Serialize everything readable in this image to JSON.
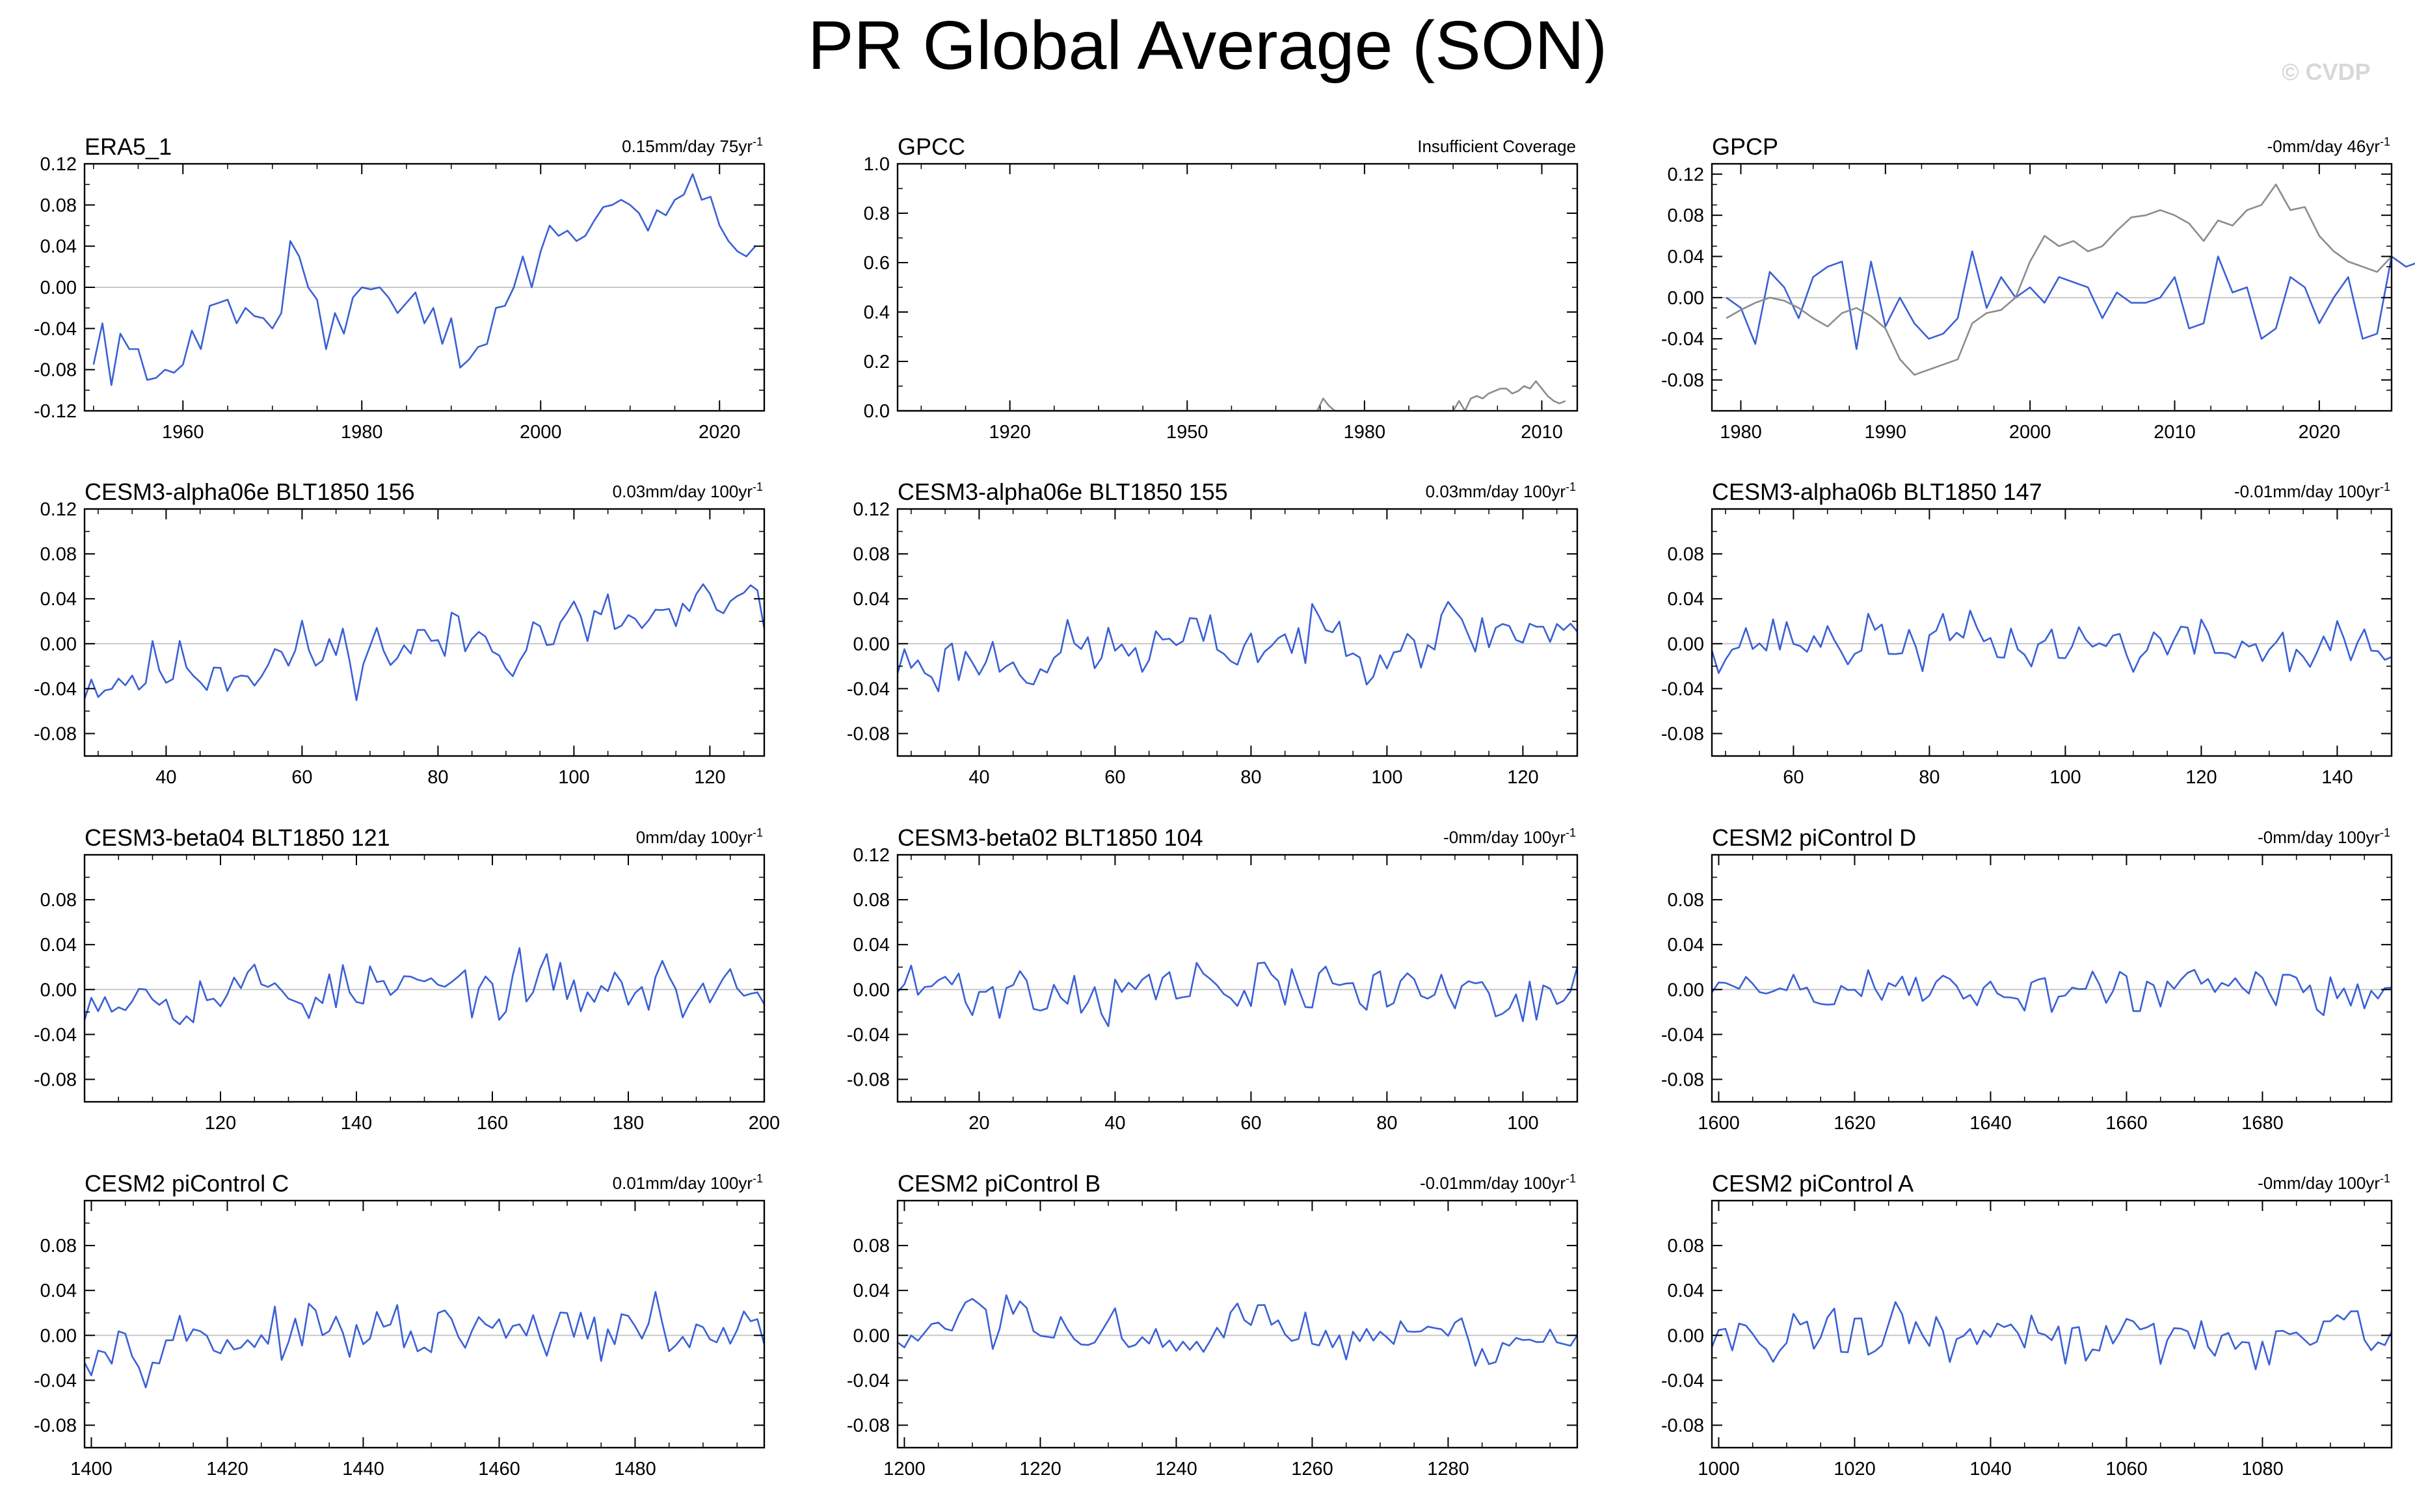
{
  "title": "PR Global Average (SON)",
  "watermark": "© CVDP",
  "colors": {
    "model_line": "#3a60d6",
    "obs_line": "#8c8c8c",
    "zero_line": "#c8c8c8",
    "frame": "#000000"
  },
  "chart_data": [
    {
      "type": "line",
      "title": "ERA5_1",
      "trend": "0.15mm/day 75yr",
      "trend_sup": "-1",
      "xlim": [
        1949,
        2025
      ],
      "ylim": [
        -0.12,
        0.12
      ],
      "yticks": [
        "0.12",
        "0.08",
        "0.04",
        "0.00",
        "-0.04",
        "-0.08",
        "-0.12"
      ],
      "xticks": [
        "1960",
        "1980",
        "2000",
        "2020"
      ],
      "series": [
        {
          "x_start": 1950,
          "values": [
            -0.075,
            -0.035,
            -0.095,
            -0.045,
            -0.06,
            -0.06,
            -0.09,
            -0.088,
            -0.08,
            -0.083,
            -0.075,
            -0.042,
            -0.06,
            -0.018,
            -0.015,
            -0.012,
            -0.035,
            -0.02,
            -0.028,
            -0.03,
            -0.04,
            -0.025,
            0.045,
            0.03,
            0.0,
            -0.012,
            -0.06,
            -0.025,
            -0.045,
            -0.01,
            0.0,
            -0.002,
            0.0,
            -0.01,
            -0.025,
            -0.015,
            -0.005,
            -0.035,
            -0.02,
            -0.055,
            -0.03,
            -0.078,
            -0.07,
            -0.058,
            -0.055,
            -0.02,
            -0.018,
            0.0,
            0.03,
            0.0,
            0.035,
            0.06,
            0.05,
            0.055,
            0.045,
            0.05,
            0.065,
            0.078,
            0.08,
            0.085,
            0.08,
            0.072,
            0.055,
            0.075,
            0.07,
            0.085,
            0.09,
            0.11,
            0.085,
            0.088,
            0.06,
            0.045,
            0.035,
            0.03,
            0.04
          ]
        }
      ]
    },
    {
      "type": "line",
      "title": "GPCC",
      "trend": "Insufficient Coverage",
      "trend_sup": "",
      "xlim": [
        1901,
        2016
      ],
      "ylim": [
        0.0,
        1.0
      ],
      "yticks": [
        "1.0",
        "0.8",
        "0.6",
        "0.4",
        "0.2",
        "0.0"
      ],
      "xticks": [
        "1920",
        "1950",
        "1980",
        "2010"
      ],
      "series": [
        {
          "x_start": 1901,
          "values": [
            0,
            0,
            0,
            0,
            0,
            0,
            0,
            0,
            0,
            0,
            0,
            0,
            0,
            0,
            0,
            0,
            0,
            0,
            0,
            0,
            0,
            0,
            0,
            0,
            0,
            0,
            0,
            0,
            0,
            0,
            0,
            0,
            0,
            0,
            0,
            0,
            0,
            0,
            0,
            0,
            0,
            0,
            0,
            0,
            0,
            0,
            0,
            0,
            0,
            0,
            0,
            0,
            0,
            0,
            0,
            0,
            0,
            0,
            0,
            0,
            0,
            0,
            0,
            0,
            0,
            0,
            0,
            0,
            0,
            0,
            0,
            0,
            0.05,
            0.02,
            0,
            0,
            0,
            0,
            0,
            0,
            0,
            0,
            0,
            0,
            0,
            0,
            0,
            0,
            0,
            0,
            0,
            0,
            0,
            0,
            0,
            0.04,
            0,
            0.05,
            0.06,
            0.05,
            0.07,
            0.08,
            0.09,
            0.09,
            0.07,
            0.08,
            0.1,
            0.09,
            0.12,
            0.09,
            0.06,
            0.04,
            0.03,
            0.04
          ]
        }
      ]
    },
    {
      "type": "line",
      "title": "GPCP",
      "trend": "-0mm/day 46yr",
      "trend_sup": "-1",
      "xlim": [
        1978,
        2025
      ],
      "ylim": [
        -0.11,
        0.13
      ],
      "yticks": [
        "0.12",
        "0.08",
        "0.04",
        "0.00",
        "-0.04",
        "-0.08"
      ],
      "xticks": [
        "1980",
        "1990",
        "2000",
        "2010",
        "2020"
      ],
      "series": [
        {
          "x_start": 1979,
          "values": [
            0.0,
            -0.01,
            -0.045,
            0.025,
            0.01,
            -0.02,
            0.02,
            0.03,
            0.035,
            -0.05,
            0.035,
            -0.028,
            0.0,
            -0.025,
            -0.04,
            -0.035,
            -0.02,
            0.045,
            -0.01,
            0.02,
            0.0,
            0.01,
            -0.005,
            0.02,
            0.015,
            0.01,
            -0.02,
            0.005,
            -0.005,
            -0.005,
            0.0,
            0.02,
            -0.03,
            -0.025,
            0.04,
            0.005,
            0.01,
            -0.04,
            -0.03,
            0.02,
            0.01,
            -0.025,
            0.0,
            0.02,
            -0.04,
            -0.035,
            0.04,
            0.03,
            0.035
          ]
        },
        {
          "x_start": 1979,
          "values": [
            -0.02,
            -0.012,
            -0.005,
            0.0,
            -0.003,
            -0.01,
            -0.02,
            -0.028,
            -0.015,
            -0.01,
            -0.018,
            -0.03,
            -0.06,
            -0.075,
            -0.07,
            -0.065,
            -0.06,
            -0.025,
            -0.015,
            -0.012,
            0.0,
            0.035,
            0.06,
            0.05,
            0.055,
            0.045,
            0.05,
            0.065,
            0.078,
            0.08,
            0.085,
            0.08,
            0.072,
            0.055,
            0.075,
            0.07,
            0.085,
            0.09,
            0.11,
            0.085,
            0.088,
            0.06,
            0.045,
            0.035,
            0.03,
            0.025,
            0.04
          ]
        }
      ]
    },
    {
      "type": "line",
      "title": "CESM3-alpha06e BLT1850 156",
      "trend": "0.03mm/day 100yr",
      "trend_sup": "-1",
      "xlim": [
        28,
        128
      ],
      "ylim": [
        -0.1,
        0.12
      ],
      "seed": 11,
      "amp": 0.015,
      "trend_k": 0.06,
      "yticks": [
        "0.12",
        "0.08",
        "0.04",
        "0.00",
        "-0.04",
        "-0.08"
      ],
      "xticks": [
        "40",
        "60",
        "80",
        "100",
        "120"
      ],
      "series": [
        {
          "generated": true
        }
      ]
    },
    {
      "type": "line",
      "title": "CESM3-alpha06e BLT1850 155",
      "trend": "0.03mm/day 100yr",
      "trend_sup": "-1",
      "xlim": [
        28,
        128
      ],
      "ylim": [
        -0.1,
        0.12
      ],
      "seed": 23,
      "amp": 0.014,
      "trend_k": 0.035,
      "yticks": [
        "0.12",
        "0.08",
        "0.04",
        "0.00",
        "-0.04",
        "-0.08"
      ],
      "xticks": [
        "40",
        "60",
        "80",
        "100",
        "120"
      ],
      "series": [
        {
          "generated": true
        }
      ]
    },
    {
      "type": "line",
      "title": "CESM3-alpha06b BLT1850 147",
      "trend": "-0.01mm/day 100yr",
      "trend_sup": "-1",
      "xlim": [
        48,
        148
      ],
      "ylim": [
        -0.1,
        0.12
      ],
      "seed": 37,
      "amp": 0.012,
      "trend_k": -0.01,
      "yticks": [
        "0.08",
        "0.04",
        "0.00",
        "-0.04",
        "-0.08"
      ],
      "xticks": [
        "60",
        "80",
        "100",
        "120",
        "140"
      ],
      "series": [
        {
          "generated": true
        }
      ]
    },
    {
      "type": "line",
      "title": "CESM3-beta04 BLT1850 121",
      "trend": "0mm/day 100yr",
      "trend_sup": "-1",
      "xlim": [
        100,
        200
      ],
      "ylim": [
        -0.1,
        0.12
      ],
      "seed": 53,
      "amp": 0.013,
      "trend_k": 0.0,
      "yticks": [
        "0.08",
        "0.04",
        "0.00",
        "-0.04",
        "-0.08"
      ],
      "xticks": [
        "120",
        "140",
        "160",
        "180",
        "200"
      ],
      "series": [
        {
          "generated": true
        }
      ]
    },
    {
      "type": "line",
      "title": "CESM3-beta02 BLT1850 104",
      "trend": "-0mm/day 100yr",
      "trend_sup": "-1",
      "xlim": [
        8,
        108
      ],
      "ylim": [
        -0.1,
        0.12
      ],
      "seed": 71,
      "amp": 0.013,
      "trend_k": 0.0,
      "yticks": [
        "0.12",
        "0.08",
        "0.04",
        "0.00",
        "-0.04",
        "-0.08"
      ],
      "xticks": [
        "20",
        "40",
        "60",
        "80",
        "100"
      ],
      "series": [
        {
          "generated": true
        }
      ]
    },
    {
      "type": "line",
      "title": "CESM2 piControl D",
      "trend": "-0mm/day 100yr",
      "trend_sup": "-1",
      "xlim": [
        1599,
        1699
      ],
      "ylim": [
        -0.1,
        0.12
      ],
      "seed": 89,
      "amp": 0.011,
      "trend_k": 0.0,
      "yticks": [
        "0.08",
        "0.04",
        "0.00",
        "-0.04",
        "-0.08"
      ],
      "xticks": [
        "1600",
        "1620",
        "1640",
        "1660",
        "1680"
      ],
      "series": [
        {
          "generated": true
        }
      ]
    },
    {
      "type": "line",
      "title": "CESM2 piControl C",
      "trend": "0.01mm/day 100yr",
      "trend_sup": "-1",
      "xlim": [
        1399,
        1499
      ],
      "ylim": [
        -0.1,
        0.12
      ],
      "seed": 97,
      "amp": 0.012,
      "trend_k": 0.005,
      "yticks": [
        "0.08",
        "0.04",
        "0.00",
        "-0.04",
        "-0.08"
      ],
      "xticks": [
        "1400",
        "1420",
        "1440",
        "1460",
        "1480"
      ],
      "series": [
        {
          "generated": true
        }
      ]
    },
    {
      "type": "line",
      "title": "CESM2 piControl B",
      "trend": "-0.01mm/day 100yr",
      "trend_sup": "-1",
      "xlim": [
        1199,
        1299
      ],
      "ylim": [
        -0.1,
        0.12
      ],
      "seed": 103,
      "amp": 0.012,
      "trend_k": 0.0,
      "yticks": [
        "0.08",
        "0.04",
        "0.00",
        "-0.04",
        "-0.08"
      ],
      "xticks": [
        "1200",
        "1220",
        "1240",
        "1260",
        "1280"
      ],
      "series": [
        {
          "generated": true
        }
      ]
    },
    {
      "type": "line",
      "title": "CESM2 piControl A",
      "trend": "-0mm/day 100yr",
      "trend_sup": "-1",
      "xlim": [
        999,
        1099
      ],
      "ylim": [
        -0.1,
        0.12
      ],
      "seed": 131,
      "amp": 0.012,
      "trend_k": -0.005,
      "yticks": [
        "0.08",
        "0.04",
        "0.00",
        "-0.04",
        "-0.08"
      ],
      "xticks": [
        "1000",
        "1020",
        "1040",
        "1060",
        "1080"
      ],
      "series": [
        {
          "generated": true
        }
      ]
    }
  ]
}
